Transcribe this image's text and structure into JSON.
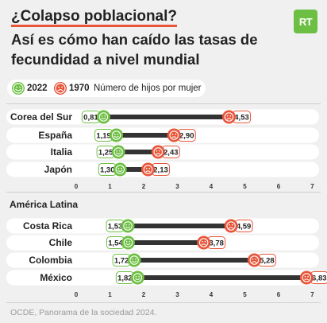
{
  "header": {
    "title_line1": "¿Colapso poblacional?",
    "title_line2": "Así es cómo han caído las tasas de fecundidad a nivel mundial",
    "logo": "RT"
  },
  "legend": {
    "label_2022": "2022",
    "label_1970": "1970",
    "description": "Número de hijos por mujer",
    "icon_2022": "smiley-face-icon",
    "icon_1970": "sad-face-icon"
  },
  "colors": {
    "green": "#6dbf43",
    "orange": "#e8553a",
    "bar": "#333333",
    "band": "#ffffff",
    "accent_underline": "#e8553a"
  },
  "source": "OCDE, Panorama de la sociedad 2024.",
  "chart_data": [
    {
      "type": "dumbbell",
      "x_ticks": [
        0,
        1,
        2,
        3,
        4,
        5,
        6,
        7
      ],
      "xlim": [
        0,
        7
      ],
      "series": [
        {
          "name": "2022"
        },
        {
          "name": "1970"
        }
      ],
      "rows": [
        {
          "country": "Corea del Sur",
          "v2022": 0.81,
          "v1970": 4.53,
          "label2022": "0,81",
          "label1970": "4,53"
        },
        {
          "country": "España",
          "v2022": 1.19,
          "v1970": 2.9,
          "label2022": "1,19",
          "label1970": "2,90"
        },
        {
          "country": "Italia",
          "v2022": 1.25,
          "v1970": 2.43,
          "label2022": "1,25",
          "label1970": "2,43"
        },
        {
          "country": "Japón",
          "v2022": 1.3,
          "v1970": 2.13,
          "label2022": "1,30",
          "label1970": "2,13"
        }
      ]
    },
    {
      "type": "dumbbell",
      "group": "América Latina",
      "x_ticks": [
        0,
        1,
        2,
        3,
        4,
        5,
        6,
        7
      ],
      "xlim": [
        0,
        7
      ],
      "series": [
        {
          "name": "2022"
        },
        {
          "name": "1970"
        }
      ],
      "rows": [
        {
          "country": "Costa Rica",
          "v2022": 1.53,
          "v1970": 4.59,
          "label2022": "1,53",
          "label1970": "4,59"
        },
        {
          "country": "Chile",
          "v2022": 1.54,
          "v1970": 3.78,
          "label2022": "1,54",
          "label1970": "3,78"
        },
        {
          "country": "Colombia",
          "v2022": 1.72,
          "v1970": 5.28,
          "label2022": "1,72",
          "label1970": "5,28"
        },
        {
          "country": "México",
          "v2022": 1.82,
          "v1970": 6.83,
          "label2022": "1,82",
          "label1970": "6,83"
        }
      ]
    }
  ]
}
